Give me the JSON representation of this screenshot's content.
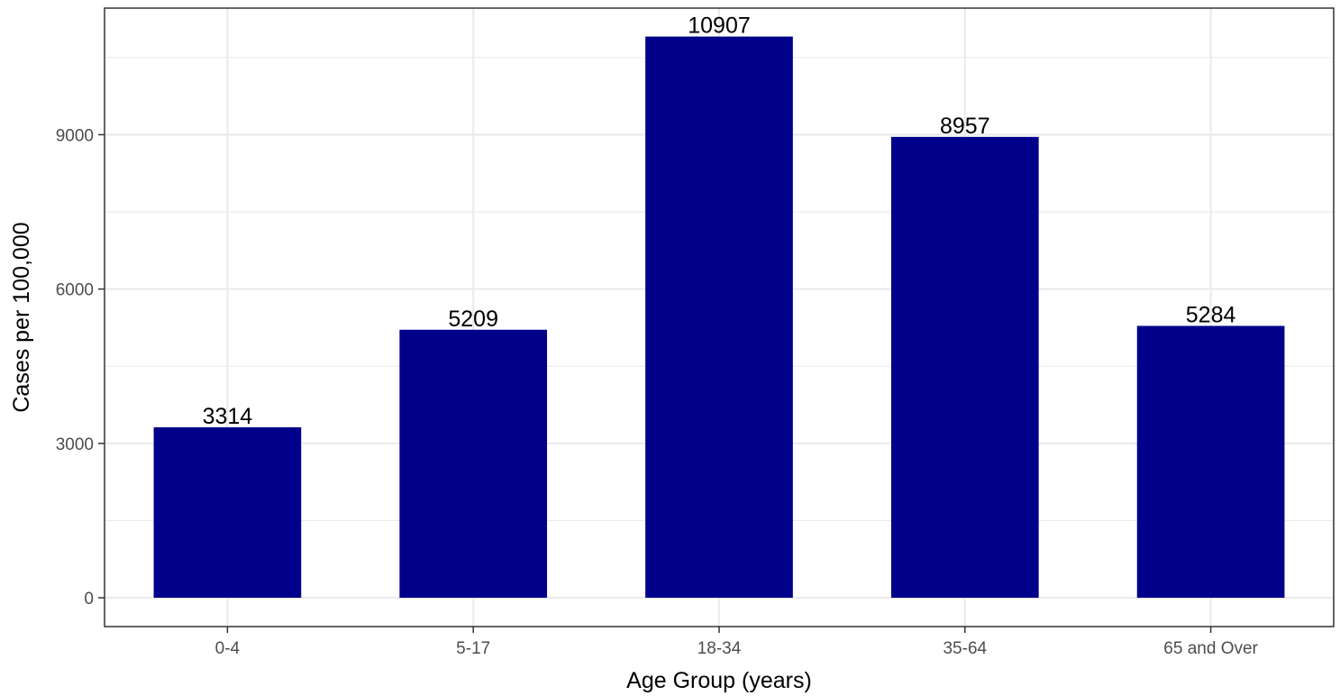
{
  "chart_data": {
    "type": "bar",
    "categories": [
      "0-4",
      "5-17",
      "18-34",
      "35-64",
      "65 and Over"
    ],
    "values": [
      3314,
      5209,
      10907,
      8957,
      5284
    ],
    "data_labels": [
      "3314",
      "5209",
      "10907",
      "8957",
      "5284"
    ],
    "title": "",
    "xlabel": "Age Group (years)",
    "ylabel": "Cases per 100,000",
    "ylim": [
      -560,
      11460
    ],
    "yticks": [
      0,
      3000,
      6000,
      9000
    ],
    "ytick_labels": [
      "0",
      "3000",
      "6000",
      "9000"
    ],
    "grid": true,
    "legend": "none",
    "colors": {
      "bar": "#00008B",
      "grid": "#ebebeb",
      "panel_border": "#333333",
      "tick_text": "#4d4d4d"
    }
  }
}
